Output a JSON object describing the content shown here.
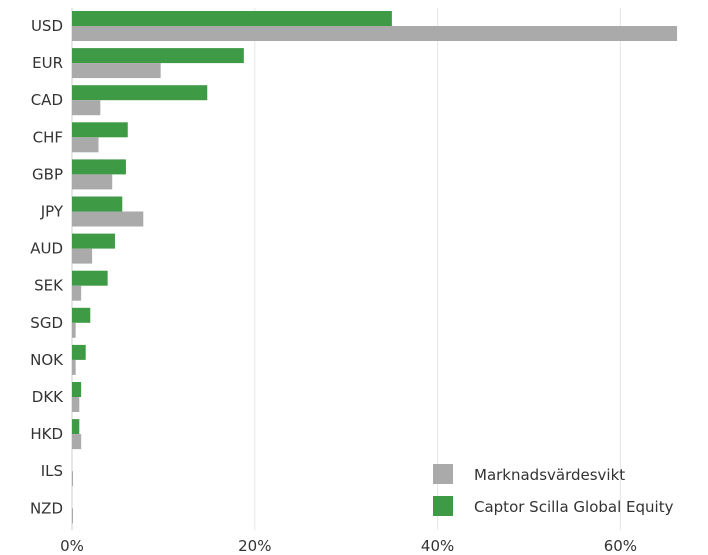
{
  "chart_data": {
    "type": "bar",
    "orientation": "horizontal",
    "categories": [
      "USD",
      "EUR",
      "CAD",
      "CHF",
      "GBP",
      "JPY",
      "AUD",
      "SEK",
      "SGD",
      "NOK",
      "DKK",
      "HKD",
      "ILS",
      "NZD"
    ],
    "series": [
      {
        "name": "Captor Scilla Global Equity",
        "color": "#3f9a46",
        "values": [
          35.0,
          18.8,
          14.8,
          6.1,
          5.9,
          5.5,
          4.7,
          3.9,
          2.0,
          1.5,
          1.0,
          0.8,
          0.0,
          0.0
        ]
      },
      {
        "name": "Marknadsvärdesvikt",
        "color": "#aaaaaa",
        "values": [
          66.2,
          9.7,
          3.1,
          2.9,
          4.4,
          7.8,
          2.2,
          1.0,
          0.4,
          0.4,
          0.8,
          1.0,
          0.1,
          0.1
        ]
      }
    ],
    "x_ticks": [
      "0%",
      "20%",
      "40%",
      "60%"
    ],
    "x_tick_values": [
      0,
      20,
      40,
      60
    ],
    "xlim": [
      0,
      70
    ],
    "grid": "vertical",
    "legend_position": "bottom-right",
    "legend": [
      "Marknadsvärdesvikt",
      "Captor Scilla Global Equity"
    ]
  }
}
